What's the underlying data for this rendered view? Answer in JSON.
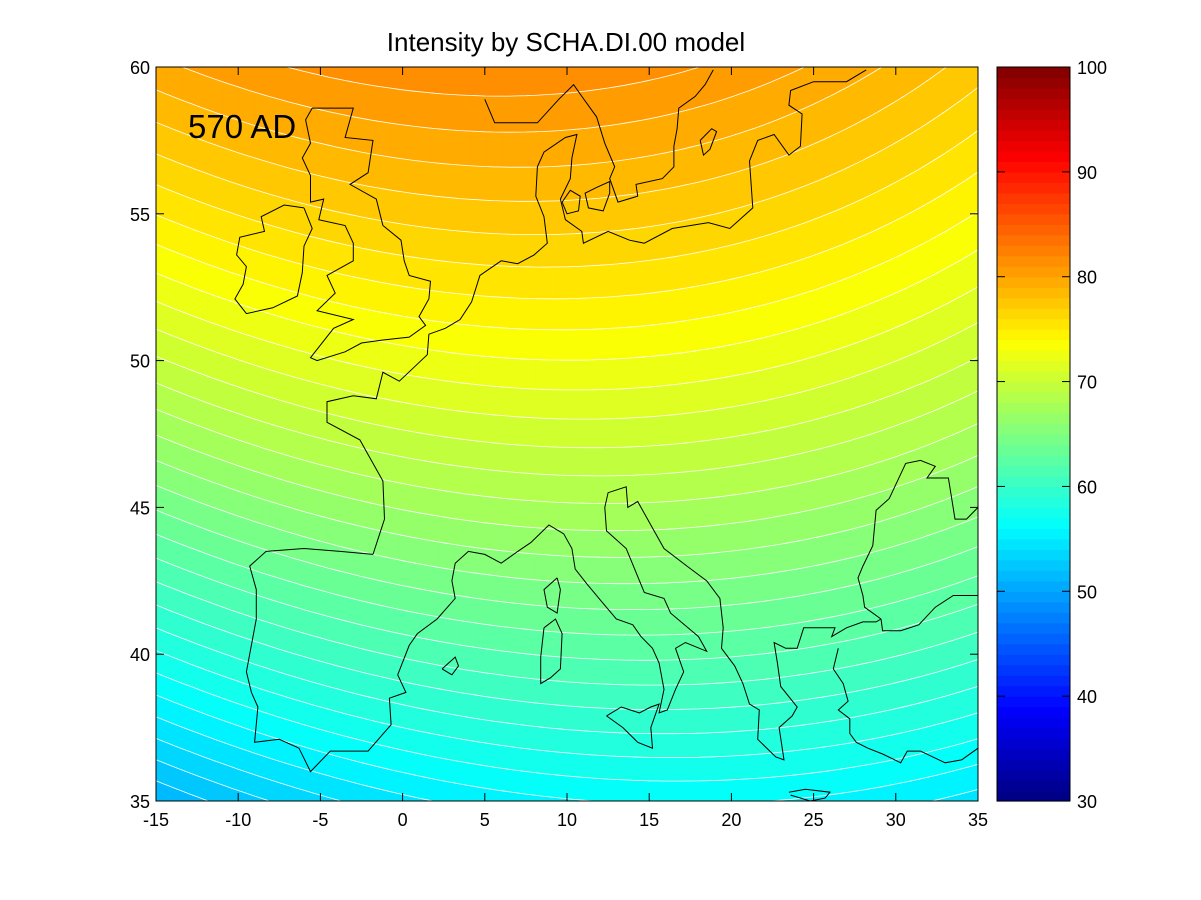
{
  "chart_data": {
    "type": "heatmap",
    "title": "Intensity by SCHA.DI.00 model",
    "annotation": "570 AD",
    "xlabel": "",
    "ylabel": "",
    "xlim": [
      -15,
      35
    ],
    "ylim": [
      35,
      60
    ],
    "x_ticks": [
      "-15",
      "-10",
      "-5",
      "0",
      "5",
      "10",
      "15",
      "20",
      "25",
      "30",
      "35"
    ],
    "y_ticks": [
      "35",
      "40",
      "45",
      "50",
      "55",
      "60"
    ],
    "colorbar": {
      "range": [
        30,
        100
      ],
      "ticks": [
        "30",
        "40",
        "50",
        "60",
        "70",
        "80",
        "90",
        "100"
      ],
      "colormap": "jet",
      "levels": 70
    },
    "contour_interval": 1,
    "contour_color": "#ffffff",
    "field_samples": [
      {
        "lon": -15,
        "lat": 35,
        "value": 50
      },
      {
        "lon": 0,
        "lat": 35,
        "value": 56
      },
      {
        "lon": 15,
        "lat": 35,
        "value": 57.5
      },
      {
        "lon": 35,
        "lat": 35,
        "value": 54
      },
      {
        "lon": -15,
        "lat": 40,
        "value": 58
      },
      {
        "lon": 20,
        "lat": 40,
        "value": 61
      },
      {
        "lon": -15,
        "lat": 45,
        "value": 63
      },
      {
        "lon": 17,
        "lat": 45,
        "value": 66
      },
      {
        "lon": -15,
        "lat": 50,
        "value": 71
      },
      {
        "lon": 17,
        "lat": 49,
        "value": 72.5
      },
      {
        "lon": 35,
        "lat": 50,
        "value": 71
      },
      {
        "lon": -15,
        "lat": 55,
        "value": 76
      },
      {
        "lon": 17,
        "lat": 55,
        "value": 77
      },
      {
        "lon": -15,
        "lat": 60,
        "value": 79
      },
      {
        "lon": 15,
        "lat": 60,
        "value": 81
      }
    ]
  }
}
